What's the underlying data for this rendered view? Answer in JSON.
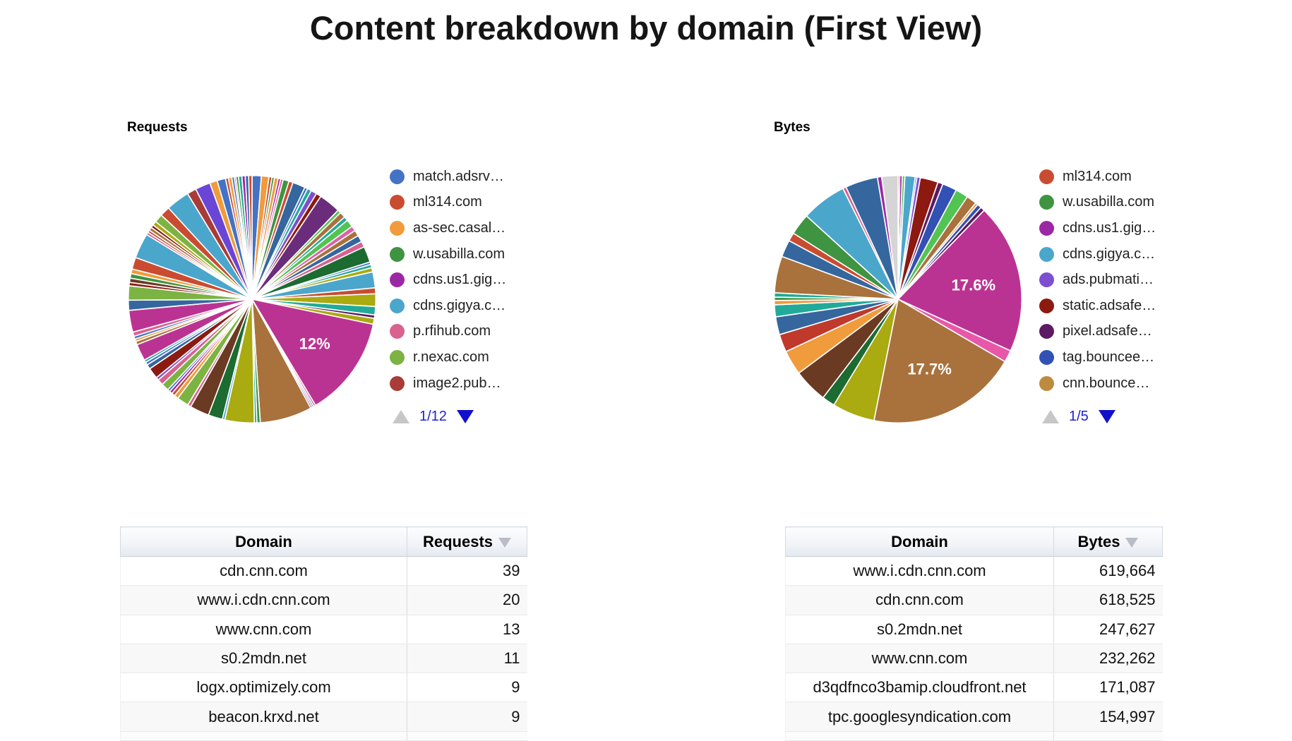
{
  "page": {
    "title": "Content breakdown by domain (First View)"
  },
  "chart_data": [
    {
      "type": "pie",
      "title": "Requests",
      "legend_position": "right",
      "legend_page": "1/12",
      "legend_entries": [
        {
          "label": "match.adsrv…",
          "color": "#4473C5"
        },
        {
          "label": "ml314.com",
          "color": "#C94C31"
        },
        {
          "label": "as-sec.casal…",
          "color": "#F09B3C"
        },
        {
          "label": "w.usabilla.com",
          "color": "#3E9440"
        },
        {
          "label": "cdns.us1.gig…",
          "color": "#9C27A5"
        },
        {
          "label": "cdns.gigya.c…",
          "color": "#4BA6CC"
        },
        {
          "label": "p.rfihub.com",
          "color": "#D9628F"
        },
        {
          "label": "r.nexac.com",
          "color": "#7CB342"
        },
        {
          "label": "image2.pub…",
          "color": "#A83C38"
        }
      ],
      "data_labels": [
        {
          "text": "12%",
          "value_pct": 12
        }
      ],
      "slices": [
        [
          "#4473C5",
          1.1
        ],
        [
          "#F09B3C",
          0.9
        ],
        [
          "#C94C31",
          0.35
        ],
        [
          "#3E9440",
          0.3
        ],
        [
          "#F09B3C",
          0.45
        ],
        [
          "#9C27A5",
          0.3
        ],
        [
          "#D9628F",
          0.3
        ],
        [
          "#3E9440",
          0.7
        ],
        [
          "#C94C31",
          0.5
        ],
        [
          "#35679E",
          1.5
        ],
        [
          "#4473C5",
          0.35
        ],
        [
          "#22AA99",
          0.5
        ],
        [
          "#7C4FD1",
          0.7
        ],
        [
          "#8C1A11",
          0.6
        ],
        [
          "#6B2D7B",
          2.6
        ],
        [
          "#52C452",
          0.4
        ],
        [
          "#A9713C",
          0.7
        ],
        [
          "#22AA99",
          0.5
        ],
        [
          "#52C452",
          0.9
        ],
        [
          "#E060A8",
          0.6
        ],
        [
          "#A9713C",
          0.7
        ],
        [
          "#35679E",
          0.8
        ],
        [
          "#D9628F",
          0.7
        ],
        [
          "#1C6B30",
          1.9
        ],
        [
          "#4473C5",
          0.3
        ],
        [
          "#22AA99",
          0.4
        ],
        [
          "#AAAA11",
          0.5
        ],
        [
          "#4BA6CC",
          1.9
        ],
        [
          "#C94C31",
          0.7
        ],
        [
          "#AAAA11",
          1.5
        ],
        [
          "#22AA99",
          1.0
        ],
        [
          "#5C1A63",
          0.4
        ],
        [
          "#AAAA11",
          0.7
        ],
        [
          "#BB3392",
          12,
          "12%"
        ],
        [
          "#D9628F",
          0.25
        ],
        [
          "#4473C5",
          0.2
        ],
        [
          "#9C27A5",
          0.2
        ],
        [
          "#A9713C",
          6.2
        ],
        [
          "#3E9440",
          0.4
        ],
        [
          "#22AA99",
          0.3
        ],
        [
          "#AAAA11",
          3.5
        ],
        [
          "#4BA6CC",
          0.3
        ],
        [
          "#1C6B30",
          1.7
        ],
        [
          "#6B3A22",
          2.3
        ],
        [
          "#D9628F",
          0.4
        ],
        [
          "#7CB342",
          1.4
        ],
        [
          "#F09B3C",
          0.5
        ],
        [
          "#C94C31",
          0.4
        ],
        [
          "#9C27A5",
          0.35
        ],
        [
          "#4473C5",
          0.3
        ],
        [
          "#7CB342",
          0.9
        ],
        [
          "#D9628F",
          0.7
        ],
        [
          "#7C4FD1",
          0.35
        ],
        [
          "#8C1A11",
          1.3
        ],
        [
          "#35679E",
          0.55
        ],
        [
          "#4473C5",
          0.35
        ],
        [
          "#22AA99",
          0.3
        ],
        [
          "#BB3392",
          2.0
        ],
        [
          "#A9713C",
          0.4
        ],
        [
          "#F09B3C",
          0.3
        ],
        [
          "#4473C5",
          0.35
        ],
        [
          "#D9628F",
          0.5
        ],
        [
          "#BB3392",
          2.6
        ],
        [
          "#35679E",
          1.2
        ],
        [
          "#7CB342",
          1.7
        ],
        [
          "#8C1A11",
          0.4
        ],
        [
          "#6B3A22",
          0.5
        ],
        [
          "#3E9440",
          0.55
        ],
        [
          "#F09B3C",
          0.55
        ],
        [
          "#C94C31",
          1.4
        ],
        [
          "#4BA6CC",
          3.0
        ],
        [
          "#D9628F",
          0.3
        ],
        [
          "#C94C31",
          0.3
        ],
        [
          "#A9713C",
          0.4
        ],
        [
          "#8C1A11",
          0.35
        ],
        [
          "#AAAA11",
          0.5
        ],
        [
          "#7CB342",
          1.0
        ],
        [
          "#C94C31",
          1.2
        ],
        [
          "#4BA6CC",
          2.8
        ],
        [
          "#A83C38",
          1.1
        ],
        [
          "#6A46D6",
          1.8
        ],
        [
          "#F09B3C",
          0.9
        ],
        [
          "#4473C5",
          1.0
        ],
        [
          "#C94C31",
          0.35
        ],
        [
          "#F09B3C",
          0.4
        ],
        [
          "#4473C5",
          0.3
        ],
        [
          "#D9628F",
          0.2
        ],
        [
          "#3E9440",
          0.3
        ],
        [
          "#22AA99",
          0.4
        ],
        [
          "#9C27A5",
          0.4
        ],
        [
          "#35679E",
          0.4
        ],
        [
          "#C94C31",
          0.4
        ]
      ]
    },
    {
      "type": "pie",
      "title": "Bytes",
      "legend_position": "right",
      "legend_page": "1/5",
      "legend_entries": [
        {
          "label": "ml314.com",
          "color": "#C94C31"
        },
        {
          "label": "w.usabilla.com",
          "color": "#3E9440"
        },
        {
          "label": "cdns.us1.gig…",
          "color": "#9C27A5"
        },
        {
          "label": "cdns.gigya.c…",
          "color": "#4BA6CC"
        },
        {
          "label": "ads.pubmati…",
          "color": "#7C4FD1"
        },
        {
          "label": "static.adsafe…",
          "color": "#8C1A11"
        },
        {
          "label": "pixel.adsafe…",
          "color": "#5C1A63"
        },
        {
          "label": "tag.bouncee…",
          "color": "#3351B5"
        },
        {
          "label": "cnn.bounce…",
          "color": "#BE8A3D"
        }
      ],
      "data_labels": [
        {
          "text": "17.6%",
          "value_pct": 17.6
        },
        {
          "text": "17.7%",
          "value_pct": 17.7
        }
      ],
      "slices": [
        [
          "#C94C31",
          0.2
        ],
        [
          "#9C27A5",
          0.3
        ],
        [
          "#52C452",
          0.3
        ],
        [
          "#4BA6CC",
          1.2
        ],
        [
          "#4473C5",
          0.2
        ],
        [
          "#7C4FD1",
          0.4
        ],
        [
          "#8C1A11",
          2.1
        ],
        [
          "#5C1A63",
          0.6
        ],
        [
          "#3351B5",
          1.7
        ],
        [
          "#52C452",
          1.5
        ],
        [
          "#A9713C",
          1.2
        ],
        [
          "#F09B3C",
          0.3
        ],
        [
          "#3351B5",
          0.5
        ],
        [
          "#5C1A63",
          0.5
        ],
        [
          "#BB3392",
          17.6,
          "17.6%"
        ],
        [
          "#E857A8",
          1.4
        ],
        [
          "#A9713C",
          17.7,
          "17.7%"
        ],
        [
          "#AAAA11",
          5.0
        ],
        [
          "#1C6B30",
          1.5
        ],
        [
          "#6B3A22",
          4.0
        ],
        [
          "#F09B3C",
          2.9
        ],
        [
          "#C0392B",
          2.1
        ],
        [
          "#35679E",
          2.1
        ],
        [
          "#22AA99",
          1.4
        ],
        [
          "#F09B3C",
          0.5
        ],
        [
          "#3E9440",
          0.4
        ],
        [
          "#22AA99",
          0.5
        ],
        [
          "#A9713C",
          4.3
        ],
        [
          "#35679E",
          2.0
        ],
        [
          "#C94C31",
          1.0
        ],
        [
          "#3E9440",
          2.5
        ],
        [
          "#4BA6CC",
          5.3
        ],
        [
          "#D9628F",
          0.4
        ],
        [
          "#35679E",
          3.8
        ],
        [
          "#9C27A5",
          0.5
        ],
        [
          "#D5D5D5",
          1.9
        ]
      ]
    },
    {
      "type": "table",
      "title": "Requests by domain",
      "columns": [
        "Domain",
        "Requests"
      ],
      "sort": {
        "column": "Requests",
        "direction": "desc"
      },
      "rows": [
        [
          "cdn.cnn.com",
          "39"
        ],
        [
          "www.i.cdn.cnn.com",
          "20"
        ],
        [
          "www.cnn.com",
          "13"
        ],
        [
          "s0.2mdn.net",
          "11"
        ],
        [
          "logx.optimizely.com",
          "9"
        ],
        [
          "beacon.krxd.net",
          "9"
        ]
      ]
    },
    {
      "type": "table",
      "title": "Bytes by domain",
      "columns": [
        "Domain",
        "Bytes"
      ],
      "sort": {
        "column": "Bytes",
        "direction": "desc"
      },
      "rows": [
        [
          "www.i.cdn.cnn.com",
          "619,664"
        ],
        [
          "cdn.cnn.com",
          "618,525"
        ],
        [
          "s0.2mdn.net",
          "247,627"
        ],
        [
          "www.cnn.com",
          "232,262"
        ],
        [
          "d3qdfnco3bamip.cloudfront.net",
          "171,087"
        ],
        [
          "tpc.googlesyndication.com",
          "154,997"
        ]
      ]
    }
  ]
}
